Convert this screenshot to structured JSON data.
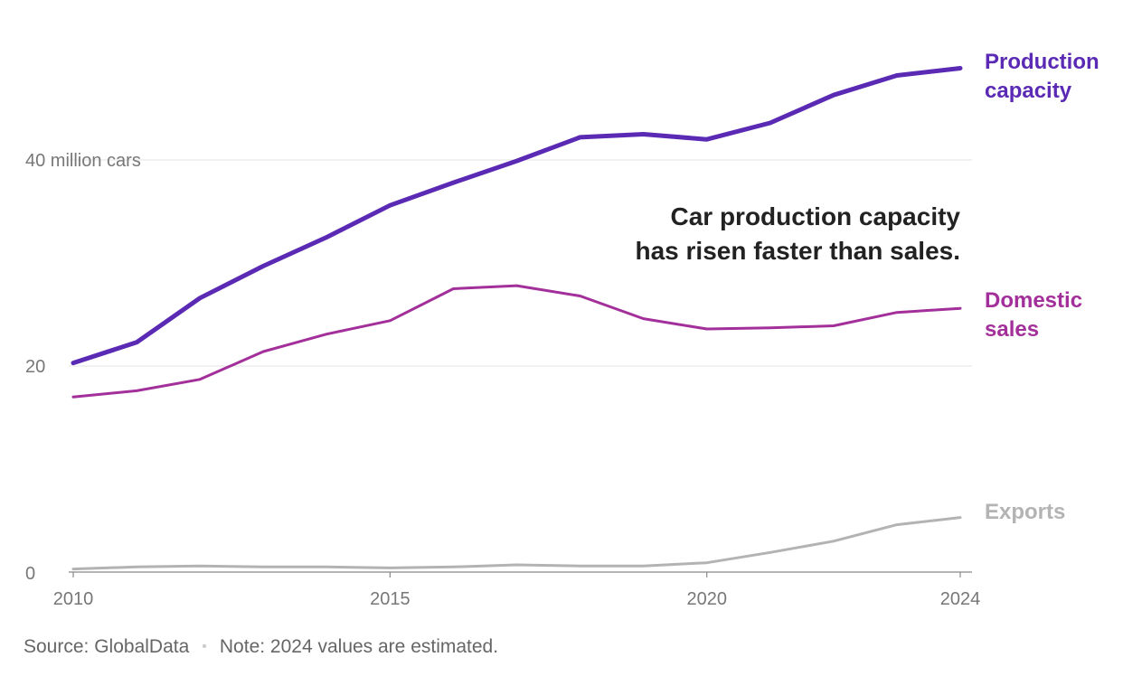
{
  "chart_data": {
    "type": "line",
    "title": "",
    "xlabel": "",
    "ylabel": "",
    "xlim": [
      2010,
      2024
    ],
    "ylim": [
      0,
      50
    ],
    "grid": true,
    "yticks": [
      {
        "value": 0,
        "label": "0"
      },
      {
        "value": 20,
        "label": "20"
      },
      {
        "value": 40,
        "label": "40 million cars"
      }
    ],
    "xticks": [
      {
        "value": 2010,
        "label": "2010"
      },
      {
        "value": 2015,
        "label": "2015"
      },
      {
        "value": 2020,
        "label": "2020"
      },
      {
        "value": 2024,
        "label": "2024"
      }
    ],
    "series": [
      {
        "name": "Production capacity",
        "label_lines": [
          "Production",
          "capacity"
        ],
        "color": "#5b2ab5",
        "x": [
          2010,
          2011,
          2012,
          2013,
          2014,
          2015,
          2016,
          2017,
          2018,
          2019,
          2020,
          2021,
          2022,
          2023,
          2024
        ],
        "values": [
          20.3,
          22.3,
          26.6,
          29.7,
          32.5,
          35.6,
          37.8,
          39.9,
          42.2,
          42.5,
          42.0,
          43.6,
          46.3,
          48.2,
          48.9
        ]
      },
      {
        "name": "Domestic sales",
        "label_lines": [
          "Domestic",
          "sales"
        ],
        "color": "#a3309a",
        "x": [
          2010,
          2011,
          2012,
          2013,
          2014,
          2015,
          2016,
          2017,
          2018,
          2019,
          2020,
          2021,
          2022,
          2023,
          2024
        ],
        "values": [
          17.0,
          17.6,
          18.7,
          21.4,
          23.1,
          24.4,
          27.5,
          27.8,
          26.8,
          24.6,
          23.6,
          23.7,
          23.9,
          25.2,
          25.6
        ]
      },
      {
        "name": "Exports",
        "label_lines": [
          "Exports"
        ],
        "color": "#b3b3b3",
        "x": [
          2010,
          2011,
          2012,
          2013,
          2014,
          2015,
          2016,
          2017,
          2018,
          2019,
          2020,
          2021,
          2022,
          2023,
          2024
        ],
        "values": [
          0.3,
          0.5,
          0.6,
          0.5,
          0.5,
          0.4,
          0.5,
          0.7,
          0.6,
          0.6,
          0.9,
          1.9,
          3.0,
          4.6,
          5.3
        ]
      }
    ],
    "annotation_lines": [
      "Car production capacity",
      "has risen faster than sales."
    ]
  },
  "footer": {
    "source": "Source: GlobalData",
    "separator": "•",
    "note": "Note: 2024 values are estimated."
  }
}
